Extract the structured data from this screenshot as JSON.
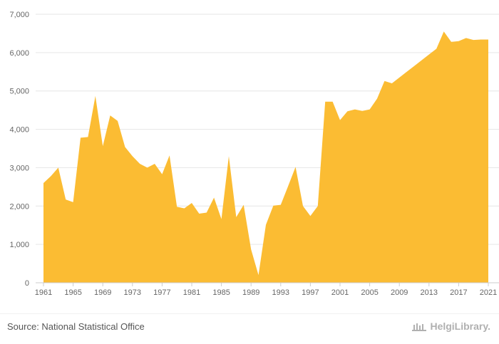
{
  "chart_data": {
    "type": "area",
    "x": [
      1961,
      1962,
      1963,
      1964,
      1965,
      1966,
      1967,
      1968,
      1969,
      1970,
      1971,
      1972,
      1973,
      1974,
      1975,
      1976,
      1977,
      1978,
      1979,
      1980,
      1981,
      1982,
      1983,
      1984,
      1985,
      1986,
      1987,
      1988,
      1989,
      1990,
      1991,
      1992,
      1993,
      1994,
      1995,
      1996,
      1997,
      1998,
      1999,
      2000,
      2001,
      2002,
      2003,
      2004,
      2005,
      2006,
      2007,
      2008,
      2009,
      2010,
      2011,
      2012,
      2013,
      2014,
      2015,
      2016,
      2017,
      2018,
      2019,
      2020,
      2021
    ],
    "series": [
      {
        "values": [
          2600,
          2780,
          3000,
          2170,
          2100,
          3780,
          3800,
          4870,
          3560,
          4360,
          4220,
          3540,
          3300,
          3100,
          3000,
          3100,
          2830,
          3320,
          1980,
          1940,
          2080,
          1800,
          1830,
          2220,
          1660,
          3300,
          1710,
          2030,
          870,
          200,
          1510,
          2010,
          2030,
          2520,
          3020,
          2000,
          1740,
          2000,
          4720,
          4720,
          4240,
          4470,
          4520,
          4480,
          4520,
          4800,
          5260,
          5200,
          5350,
          5500,
          5650,
          5800,
          5950,
          6100,
          6550,
          6280,
          6300,
          6380,
          6330,
          6340,
          6340
        ],
        "color": "#fbbc33"
      }
    ],
    "xtick_labels": [
      "1961",
      "1965",
      "1969",
      "1973",
      "1977",
      "1981",
      "1985",
      "1989",
      "1993",
      "1997",
      "2001",
      "2005",
      "2009",
      "2013",
      "2017",
      "2021"
    ],
    "yticks": [
      0,
      1000,
      2000,
      3000,
      4000,
      5000,
      6000,
      7000
    ],
    "ytick_labels": [
      "0",
      "1,000",
      "2,000",
      "3,000",
      "4,000",
      "5,000",
      "6,000",
      "7,000"
    ],
    "ylim": [
      0,
      7000
    ],
    "xlim": [
      1961,
      2021
    ],
    "grid": "horizontal",
    "title": "",
    "xlabel": "",
    "ylabel": ""
  },
  "footer": {
    "source": "Source: National Statistical Office",
    "logo_text": "HelgiLibrary."
  },
  "colors": {
    "area_fill": "#fbbc33",
    "grid": "#e6e6e6",
    "axis_text": "#666666"
  }
}
